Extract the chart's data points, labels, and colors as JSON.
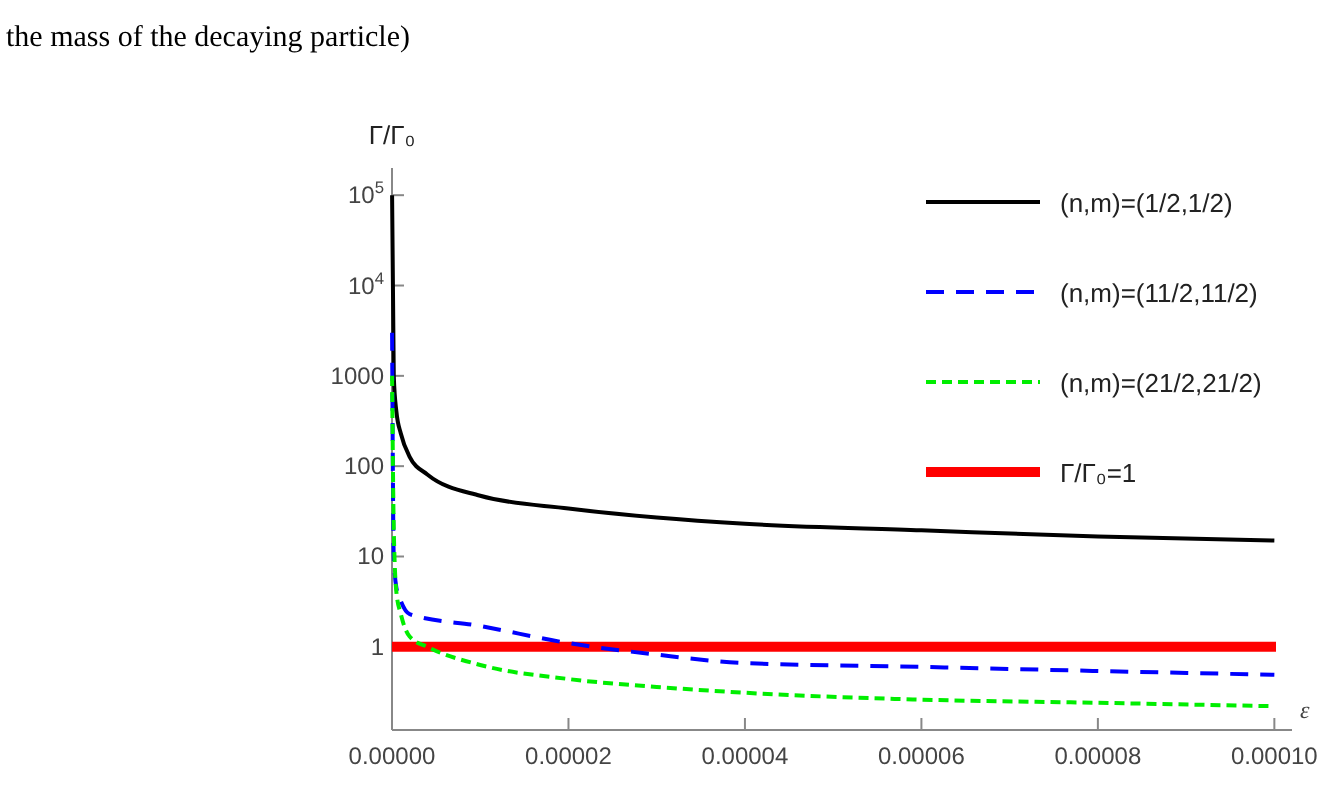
{
  "chart_data": {
    "type": "line",
    "annotations": [
      "the mass of the decaying particle)"
    ],
    "ylabel": "Γ/Γ₀",
    "xlabel": "ε",
    "log": "y",
    "legend": "top right",
    "grid": false,
    "xlim": [
      0,
      0.000102
    ],
    "xticks": [
      {
        "value": 0,
        "label": "0.00000"
      },
      {
        "value": 2e-05,
        "label": "0.00002"
      },
      {
        "value": 4e-05,
        "label": "0.00004"
      },
      {
        "value": 6e-05,
        "label": "0.00006"
      },
      {
        "value": 8e-05,
        "label": "0.00008"
      },
      {
        "value": 0.0001,
        "label": "0.00010"
      }
    ],
    "ylim": [
      0.12,
      200000
    ],
    "yticks": [
      1,
      10,
      100,
      1000,
      {
        "value": 10000,
        "label": "10$^{4}$"
      },
      {
        "value": 100000,
        "label": "10$^{5}$"
      }
    ],
    "series": [
      {
        "name": "(n,m)=(1/2,1/2)",
        "color": "#000000",
        "line_style": "solid",
        "x": [
          1e-08,
          2e-07,
          5e-07,
          1e-06,
          2e-06,
          4e-06,
          1e-05,
          2e-05,
          3e-05,
          4e-05,
          6e-05,
          8e-05,
          0.0001
        ],
        "values": [
          100000,
          1000,
          400,
          230,
          127,
          81,
          47,
          34,
          27,
          23,
          19.5,
          16.6,
          15
        ]
      },
      {
        "name": "(n,m)=(11/2,11/2)",
        "color": "#0000ff",
        "line_style": "dashed",
        "x": [
          1e-08,
          2e-07,
          5e-07,
          1e-06,
          2e-06,
          1e-05,
          2e-05,
          3e-05,
          4e-05,
          6e-05,
          8e-05,
          0.0001
        ],
        "values": [
          3000,
          10,
          4.5,
          3.2,
          2.3,
          1.7,
          1.1,
          0.82,
          0.66,
          0.6,
          0.54,
          0.49
        ]
      },
      {
        "name": "(n,m)=(21/2,21/2)",
        "color": "#00ee00",
        "line_style": "dotted",
        "x": [
          1e-08,
          2e-07,
          5e-07,
          1e-06,
          2e-06,
          4e-06,
          1e-05,
          2e-05,
          3e-05,
          4e-05,
          6e-05,
          8e-05,
          0.0001
        ],
        "values": [
          1000,
          20,
          4,
          2.3,
          1.3,
          1.0,
          0.63,
          0.44,
          0.36,
          0.31,
          0.26,
          0.24,
          0.22
        ]
      }
    ],
    "ref_lines": [
      {
        "axis": "y",
        "value": 1,
        "label": "Γ/Γ₀=1",
        "color": "#ff0000"
      }
    ]
  }
}
